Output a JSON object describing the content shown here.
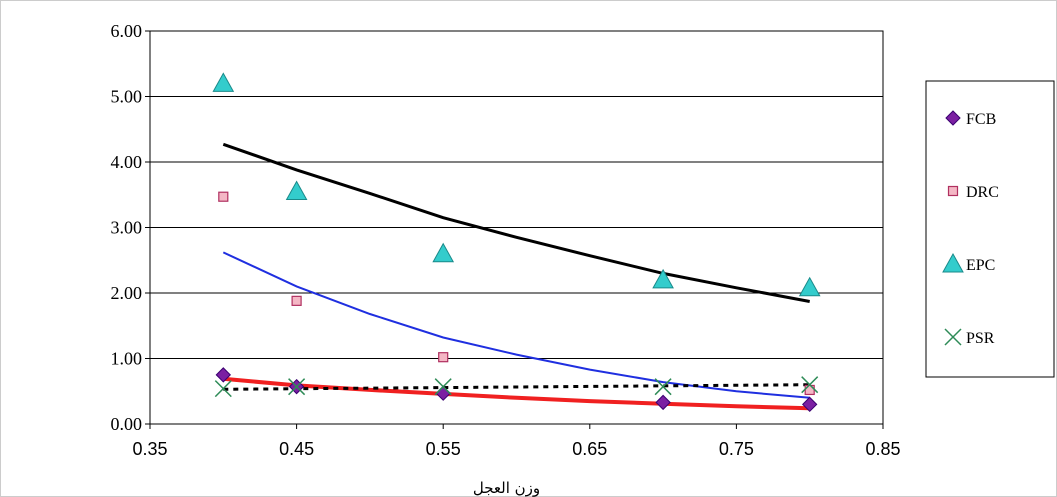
{
  "chart_data": {
    "type": "scatter",
    "title": "",
    "xlabel": "وزن العجل",
    "ylabel": "",
    "xlim": [
      0.35,
      0.85
    ],
    "ylim": [
      0,
      6
    ],
    "x_ticks": [
      "0.35",
      "0.45",
      "0.55",
      "0.65",
      "0.75",
      "0.85"
    ],
    "y_ticks": [
      "0.00",
      "1.00",
      "2.00",
      "3.00",
      "4.00",
      "5.00",
      "6.00"
    ],
    "grid": "horizontal",
    "legend_position": "right",
    "series": [
      {
        "name": "FCB",
        "marker": "diamond",
        "color": "#7B1FA2",
        "edge": "#3a0070",
        "x": [
          0.4,
          0.45,
          0.55,
          0.7,
          0.8
        ],
        "y": [
          0.75,
          0.57,
          0.47,
          0.33,
          0.3
        ]
      },
      {
        "name": "DRC",
        "marker": "square",
        "color": "#F4B7C5",
        "edge": "#B03060",
        "x": [
          0.4,
          0.45,
          0.55,
          0.8
        ],
        "y": [
          3.47,
          1.88,
          1.02,
          0.52
        ]
      },
      {
        "name": "EPC",
        "marker": "triangle",
        "color": "#33CCCC",
        "edge": "#1a8a8a",
        "x": [
          0.4,
          0.45,
          0.55,
          0.7,
          0.8
        ],
        "y": [
          5.2,
          3.55,
          2.6,
          2.2,
          2.08
        ]
      },
      {
        "name": "PSR",
        "marker": "x",
        "color": "#2E8B57",
        "edge": "#2E8B57",
        "x": [
          0.4,
          0.45,
          0.55,
          0.7,
          0.8
        ],
        "y": [
          0.54,
          0.57,
          0.57,
          0.57,
          0.6
        ]
      }
    ],
    "trendlines": [
      {
        "series": "EPC",
        "color": "#000000",
        "style": "solid",
        "x": [
          0.4,
          0.45,
          0.5,
          0.55,
          0.6,
          0.65,
          0.7,
          0.75,
          0.8
        ],
        "y": [
          4.27,
          3.88,
          3.52,
          3.15,
          2.85,
          2.57,
          2.3,
          2.08,
          1.87
        ]
      },
      {
        "series": "DRC",
        "color": "#1F2FE0",
        "style": "solid",
        "x": [
          0.4,
          0.45,
          0.5,
          0.55,
          0.6,
          0.65,
          0.7,
          0.75,
          0.8
        ],
        "y": [
          2.62,
          2.1,
          1.68,
          1.32,
          1.06,
          0.83,
          0.64,
          0.5,
          0.4
        ]
      },
      {
        "series": "FCB",
        "color": "#F02020",
        "style": "solid",
        "x": [
          0.4,
          0.45,
          0.5,
          0.55,
          0.6,
          0.65,
          0.7,
          0.75,
          0.8
        ],
        "y": [
          0.69,
          0.59,
          0.52,
          0.46,
          0.4,
          0.35,
          0.31,
          0.27,
          0.24
        ]
      },
      {
        "series": "PSR",
        "color": "#000000",
        "style": "dashed",
        "x": [
          0.4,
          0.8
        ],
        "y": [
          0.53,
          0.6
        ]
      }
    ]
  }
}
